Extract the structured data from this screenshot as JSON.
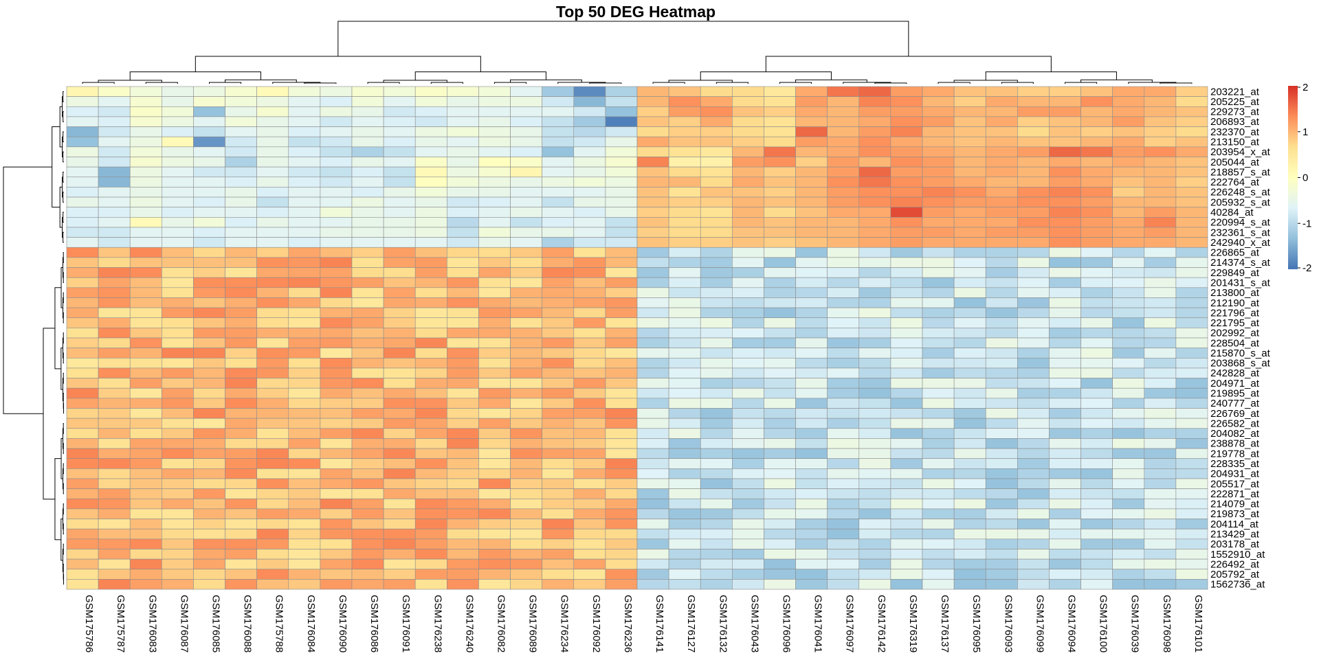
{
  "chart_data": {
    "type": "heatmap",
    "title": "Top 50 DEG Heatmap",
    "columns": [
      "GSM175786",
      "GSM175787",
      "GSM176083",
      "GSM176087",
      "GSM176085",
      "GSM176088",
      "GSM175788",
      "GSM176084",
      "GSM176090",
      "GSM176086",
      "GSM176091",
      "GSM176238",
      "GSM176240",
      "GSM176082",
      "GSM176089",
      "GSM176234",
      "GSM176092",
      "GSM176236",
      "GSM176141",
      "GSM176127",
      "GSM176132",
      "GSM176043",
      "GSM176096",
      "GSM176041",
      "GSM176097",
      "GSM176142",
      "GSM176319",
      "GSM176137",
      "GSM176095",
      "GSM176093",
      "GSM176099",
      "GSM176094",
      "GSM176100",
      "GSM176039",
      "GSM176098",
      "GSM176101"
    ],
    "rows": [
      "203221_at",
      "205225_at",
      "229273_at",
      "206893_at",
      "232370_at",
      "213150_at",
      "203954_x_at",
      "205044_at",
      "218857_s_at",
      "222764_at",
      "226248_s_at",
      "205932_s_at",
      "40284_at",
      "220994_s_at",
      "232361_s_at",
      "242940_x_at",
      "226865_at",
      "214374_s_at",
      "229849_at",
      "201431_s_at",
      "213800_at",
      "212190_at",
      "221796_at",
      "221795_at",
      "202992_at",
      "228504_at",
      "215870_s_at",
      "203868_s_at",
      "242828_at",
      "204971_at",
      "219895_at",
      "240777_at",
      "226769_at",
      "226582_at",
      "204082_at",
      "238878_at",
      "219778_at",
      "228335_at",
      "204931_at",
      "205517_at",
      "222871_at",
      "214079_at",
      "219873_at",
      "204114_at",
      "213429_at",
      "203178_at",
      "1552910_at",
      "226492_at",
      "205792_at",
      "1562736_at"
    ],
    "row_groups": {
      "up_in_second_cluster": 16,
      "down_in_second_cluster": 34
    },
    "column_groups": {
      "first_cluster": 18,
      "second_cluster": 18
    },
    "values_up_block": [
      [
        0.2,
        -0.1,
        -0.3,
        -0.5,
        -0.4,
        -0.2,
        0.1,
        -0.3,
        -0.4,
        -0.2,
        -0.3,
        -0.1,
        -0.2,
        -0.3,
        -0.6,
        -1.2,
        -1.8,
        -1.1,
        1.0,
        0.9,
        0.7,
        0.7,
        0.5,
        1.1,
        1.5,
        1.6,
        1.2,
        1.1,
        0.9,
        0.9,
        0.8,
        0.8,
        0.9,
        1.1,
        1.1,
        0.8
      ],
      [
        -0.4,
        -0.6,
        -0.2,
        -0.5,
        -0.2,
        -0.3,
        -0.4,
        -0.6,
        -0.7,
        -0.3,
        -0.6,
        -0.3,
        -0.5,
        -0.4,
        -0.4,
        -0.8,
        -1.4,
        -0.9,
        1.0,
        1.3,
        1.1,
        0.7,
        0.6,
        1.2,
        1.0,
        1.4,
        1.3,
        1.0,
        0.8,
        1.1,
        1.0,
        1.0,
        1.3,
        1.1,
        1.0,
        0.7
      ],
      [
        -0.7,
        -0.8,
        -0.1,
        -0.3,
        -1.3,
        -0.5,
        -0.2,
        -0.6,
        -0.4,
        -0.5,
        -0.8,
        -0.7,
        -0.6,
        -0.6,
        -0.6,
        -0.6,
        -0.8,
        -1.3,
        0.8,
        1.2,
        1.3,
        0.9,
        0.8,
        1.1,
        1.0,
        1.2,
        1.2,
        1.1,
        1.0,
        1.0,
        1.2,
        1.2,
        1.0,
        1.1,
        1.0,
        0.9
      ],
      [
        -0.6,
        -0.7,
        -0.2,
        -0.4,
        -0.6,
        -0.3,
        -0.5,
        -0.6,
        -0.8,
        -0.6,
        -0.7,
        -0.8,
        -0.6,
        -0.5,
        -0.7,
        -0.9,
        -1.2,
        -1.9,
        0.9,
        0.8,
        1.1,
        0.7,
        0.6,
        1.0,
        1.0,
        1.1,
        1.3,
        1.2,
        0.9,
        1.1,
        0.8,
        0.9,
        1.0,
        1.2,
        0.9,
        0.8
      ],
      [
        -1.4,
        -0.8,
        -0.5,
        -0.7,
        -0.9,
        -0.6,
        -0.5,
        -0.7,
        -0.6,
        -0.5,
        -0.6,
        -0.4,
        -0.3,
        -0.4,
        -0.5,
        -0.9,
        -1.0,
        -0.8,
        0.7,
        0.8,
        0.8,
        0.7,
        0.6,
        1.6,
        1.0,
        1.2,
        1.4,
        1.0,
        0.9,
        0.9,
        0.7,
        0.9,
        0.8,
        0.9,
        0.8,
        0.7
      ],
      [
        -1.3,
        -0.6,
        -0.4,
        0.1,
        -1.7,
        -0.8,
        -0.5,
        -0.9,
        -0.8,
        -0.5,
        -0.7,
        -0.5,
        -0.6,
        -0.4,
        -0.5,
        -0.9,
        -0.8,
        -0.5,
        1.1,
        0.9,
        0.9,
        0.8,
        0.7,
        1.2,
        1.1,
        1.3,
        1.1,
        1.0,
        0.9,
        1.0,
        0.9,
        0.9,
        1.0,
        1.1,
        0.8,
        0.9
      ],
      [
        -0.4,
        -0.8,
        -0.3,
        -0.5,
        -0.6,
        -0.8,
        -0.5,
        -0.7,
        -0.9,
        -1.1,
        -0.9,
        -0.6,
        -0.5,
        -0.6,
        -0.7,
        -1.3,
        -0.6,
        -0.3,
        0.7,
        0.6,
        0.5,
        1.0,
        1.5,
        1.0,
        1.1,
        1.3,
        1.2,
        1.1,
        1.0,
        1.1,
        1.2,
        1.6,
        1.5,
        1.2,
        1.3,
        1.1
      ],
      [
        -0.5,
        -0.8,
        -0.2,
        -0.4,
        -0.5,
        -1.1,
        -0.5,
        -0.6,
        -0.7,
        -0.5,
        -0.6,
        -0.1,
        -0.5,
        0.0,
        -0.1,
        -0.6,
        -0.4,
        -0.2,
        1.4,
        0.3,
        0.3,
        1.2,
        1.3,
        0.8,
        1.2,
        1.0,
        1.3,
        1.2,
        1.0,
        1.1,
        1.0,
        1.1,
        1.0,
        1.1,
        1.0,
        0.9
      ],
      [
        -0.6,
        -1.4,
        -0.4,
        -0.6,
        -0.8,
        -0.8,
        -0.6,
        -0.8,
        -0.9,
        -0.7,
        -0.9,
        0.1,
        -0.4,
        -0.2,
        0.2,
        -0.6,
        -0.5,
        -0.3,
        0.9,
        0.7,
        0.6,
        1.0,
        0.8,
        1.0,
        1.2,
        1.6,
        1.2,
        1.2,
        1.0,
        1.1,
        1.0,
        1.3,
        1.1,
        1.0,
        1.0,
        0.9
      ],
      [
        -0.6,
        -1.4,
        -0.4,
        -0.6,
        -0.6,
        -0.7,
        -0.5,
        -0.7,
        -0.8,
        -0.6,
        -0.9,
        0.0,
        -0.3,
        -0.4,
        -0.5,
        -0.4,
        -0.3,
        -0.4,
        1.0,
        1.0,
        0.7,
        1.1,
        0.9,
        1.0,
        1.3,
        1.5,
        1.3,
        1.2,
        1.1,
        1.0,
        1.0,
        1.2,
        1.1,
        0.9,
        1.0,
        0.8
      ],
      [
        -0.7,
        -0.6,
        -0.5,
        -0.6,
        -0.6,
        -0.5,
        -0.7,
        -0.6,
        -0.6,
        -0.7,
        -0.5,
        -0.3,
        -0.5,
        -0.5,
        -0.6,
        -0.6,
        -0.6,
        -0.5,
        0.9,
        0.6,
        0.9,
        0.9,
        0.8,
        1.0,
        1.2,
        1.3,
        1.3,
        1.4,
        1.3,
        1.1,
        1.3,
        1.4,
        1.3,
        0.8,
        1.0,
        0.9
      ],
      [
        -0.5,
        -0.6,
        -0.4,
        -0.6,
        -0.7,
        -0.5,
        -0.9,
        -0.6,
        -0.6,
        -0.4,
        -0.6,
        -0.5,
        -0.8,
        -0.7,
        -0.6,
        -0.9,
        -0.5,
        -0.5,
        0.9,
        0.8,
        0.8,
        1.0,
        0.9,
        1.0,
        1.2,
        1.3,
        1.4,
        1.3,
        1.2,
        1.2,
        1.3,
        1.3,
        1.2,
        1.0,
        1.0,
        0.9
      ],
      [
        -0.7,
        -0.7,
        -0.5,
        -0.7,
        -0.6,
        -0.6,
        -0.7,
        -0.6,
        -0.3,
        -0.5,
        -0.6,
        -0.4,
        -0.7,
        -0.6,
        -0.5,
        -0.6,
        -0.7,
        -0.5,
        0.8,
        0.7,
        0.6,
        1.0,
        0.7,
        0.9,
        1.1,
        1.1,
        1.8,
        1.2,
        1.1,
        1.2,
        1.2,
        1.4,
        1.3,
        1.0,
        1.2,
        1.0
      ],
      [
        -0.7,
        -0.6,
        0.1,
        -0.5,
        -0.3,
        -0.7,
        -0.5,
        -0.6,
        -0.6,
        -0.5,
        -0.5,
        -0.4,
        -1.0,
        -0.6,
        -0.9,
        -0.7,
        -0.6,
        -0.9,
        0.9,
        0.7,
        0.7,
        1.0,
        0.9,
        1.0,
        1.0,
        1.1,
        1.3,
        1.1,
        1.1,
        1.1,
        1.3,
        1.3,
        1.2,
        1.1,
        1.4,
        1.0
      ],
      [
        -0.8,
        -0.8,
        -0.6,
        -0.6,
        -0.7,
        -0.6,
        -0.6,
        -0.6,
        -0.5,
        -0.5,
        -0.5,
        -0.4,
        -0.9,
        -0.3,
        -0.5,
        -0.5,
        -0.6,
        -0.9,
        0.8,
        0.7,
        0.7,
        0.9,
        0.9,
        1.0,
        1.0,
        1.1,
        1.2,
        1.2,
        1.1,
        1.2,
        1.2,
        1.3,
        1.2,
        1.1,
        1.2,
        1.0
      ],
      [
        -0.6,
        -0.8,
        -0.6,
        -0.6,
        -0.8,
        -0.6,
        -0.6,
        -0.7,
        -0.6,
        -0.6,
        -0.6,
        -0.6,
        -0.8,
        -0.5,
        -0.6,
        -1.1,
        -0.8,
        -0.8,
        0.9,
        0.8,
        0.8,
        0.9,
        0.8,
        0.9,
        1.0,
        1.1,
        1.2,
        1.1,
        1.1,
        1.1,
        1.1,
        1.3,
        1.2,
        1.1,
        1.1,
        1.0
      ]
    ],
    "value_range": [
      -2,
      2
    ],
    "colorscale": [
      "#4575b4",
      "#91bfdb",
      "#e0f3f8",
      "#ffffbf",
      "#fee090",
      "#fc8d59",
      "#d73027"
    ],
    "legend": {
      "position": "right",
      "ticks": [
        "2",
        "1",
        "0",
        "-1",
        "-2"
      ]
    }
  }
}
